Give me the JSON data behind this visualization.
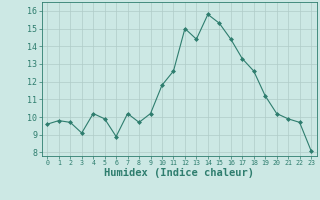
{
  "x": [
    0,
    1,
    2,
    3,
    4,
    5,
    6,
    7,
    8,
    9,
    10,
    11,
    12,
    13,
    14,
    15,
    16,
    17,
    18,
    19,
    20,
    21,
    22,
    23
  ],
  "y": [
    9.6,
    9.8,
    9.7,
    9.1,
    10.2,
    9.9,
    8.9,
    10.2,
    9.7,
    10.2,
    11.8,
    12.6,
    15.0,
    14.4,
    15.8,
    15.3,
    14.4,
    13.3,
    12.6,
    11.2,
    10.2,
    9.9,
    9.7,
    8.1
  ],
  "line_color": "#2e7d6e",
  "marker": "D",
  "marker_size": 2,
  "bg_color": "#cce8e4",
  "grid_color": "#b0ccc8",
  "tick_color": "#2e7d6e",
  "xlabel": "Humidex (Indice chaleur)",
  "xlabel_fontsize": 7.5,
  "ylabel_ticks": [
    8,
    9,
    10,
    11,
    12,
    13,
    14,
    15,
    16
  ],
  "xlim": [
    -0.5,
    23.5
  ],
  "ylim": [
    7.8,
    16.5
  ],
  "xtick_labels": [
    "0",
    "1",
    "2",
    "3",
    "4",
    "5",
    "6",
    "7",
    "8",
    "9",
    "10",
    "11",
    "12",
    "13",
    "14",
    "15",
    "16",
    "17",
    "18",
    "19",
    "20",
    "21",
    "22",
    "23"
  ]
}
